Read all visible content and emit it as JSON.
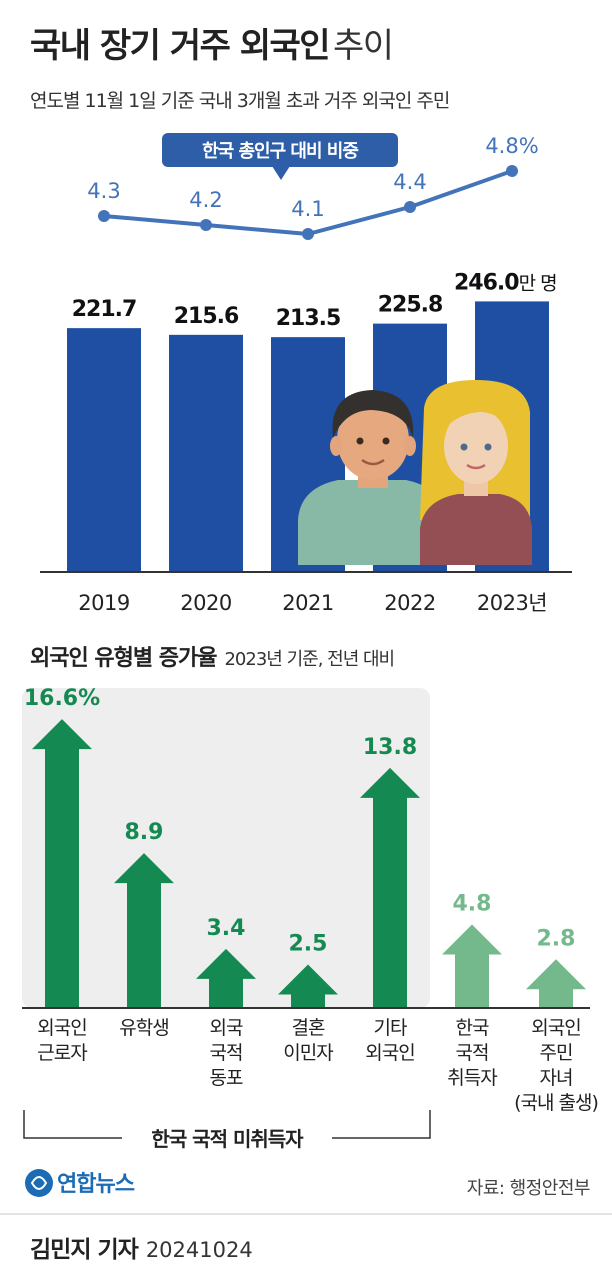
{
  "title": {
    "main": "국내 장기 거주 외국인",
    "suffix": "추이"
  },
  "subtitle": "연도별 11월 1일 기준 국내 3개월 초과 거주 외국인 주민",
  "section2": {
    "title": "외국인 유형별 증가율",
    "note": "2023년 기준, 전년 대비"
  },
  "source": "자료: 행정안전부",
  "logo_text": "연합뉴스",
  "credit": {
    "name": "김민지 기자",
    "date": "20241024"
  },
  "colors": {
    "bar": "#1f4fa2",
    "line": "#4373b8",
    "callout": "#2f5ea8",
    "arrow": "#148a52",
    "arrow_light": "#74b98c",
    "logo": "#1b6cb5"
  },
  "chart_data": [
    {
      "type": "bar",
      "title": "국내 장기 거주 외국인 추이",
      "categories": [
        "2019",
        "2020",
        "2021",
        "2022",
        "2023년"
      ],
      "values": [
        221.7,
        215.6,
        213.5,
        225.8,
        246.0
      ],
      "value_labels": [
        "221.7",
        "215.6",
        "213.5",
        "225.8",
        "246.0"
      ],
      "unit": "만 명",
      "line": {
        "name": "한국 총인구 대비 비중",
        "values": [
          4.3,
          4.2,
          4.1,
          4.4,
          4.8
        ],
        "labels": [
          "4.3",
          "4.2",
          "4.1",
          "4.4",
          "4.8%"
        ]
      }
    },
    {
      "type": "bar",
      "title": "외국인 유형별 증가율",
      "categories": [
        [
          "외국인",
          "근로자"
        ],
        [
          "유학생"
        ],
        [
          "외국",
          "국적",
          "동포"
        ],
        [
          "결혼",
          "이민자"
        ],
        [
          "기타",
          "외국인"
        ],
        [
          "한국",
          "국적",
          "취득자"
        ],
        [
          "외국인",
          "주민",
          "자녀",
          "(국내 출생)"
        ]
      ],
      "values": [
        16.6,
        8.9,
        3.4,
        2.5,
        13.8,
        4.8,
        2.8
      ],
      "value_labels": [
        "16.6%",
        "8.9",
        "3.4",
        "2.5",
        "13.8",
        "4.8",
        "2.8"
      ],
      "group_label": "한국 국적 미취득자",
      "group_size": 5
    }
  ]
}
